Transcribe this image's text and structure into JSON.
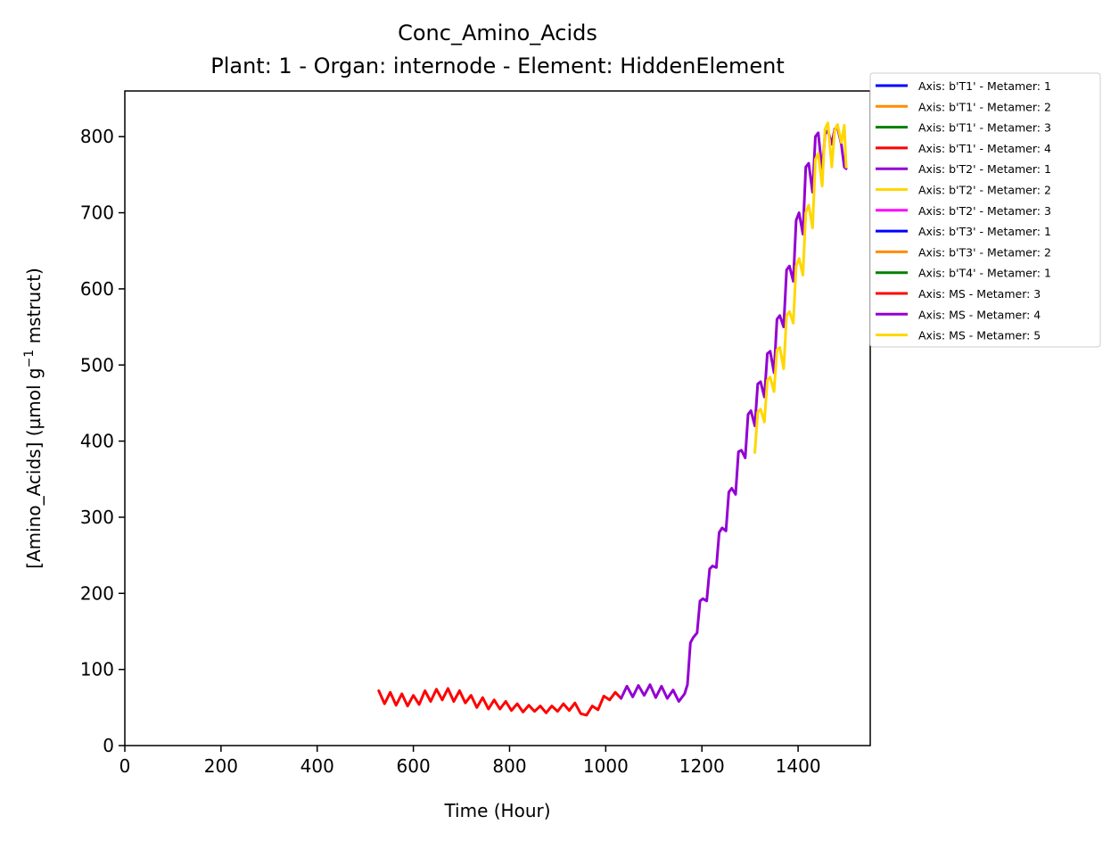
{
  "chart_data": {
    "type": "line",
    "title": "Conc_Amino_Acids",
    "subtitle": "Plant: 1 - Organ: internode - Element: HiddenElement",
    "xlabel": "Time (Hour)",
    "ylabel_prefix": "[Amino_Acids] (µmol g",
    "ylabel_sup": "−1",
    "ylabel_suffix": " mstruct)",
    "xlim": [
      0,
      1550
    ],
    "ylim": [
      0,
      860
    ],
    "xticks": [
      0,
      200,
      400,
      600,
      800,
      1000,
      1200,
      1400
    ],
    "yticks": [
      0,
      100,
      200,
      300,
      400,
      500,
      600,
      700,
      800
    ],
    "grid": false,
    "legend_position": "outside-top-right",
    "series": [
      {
        "name": "Axis: b'T1' - Metamer: 1",
        "color": "#0000ff",
        "x": [],
        "y": []
      },
      {
        "name": "Axis: b'T1' - Metamer: 2",
        "color": "#ff8c00",
        "x": [],
        "y": []
      },
      {
        "name": "Axis: b'T1' - Metamer: 3",
        "color": "#008000",
        "x": [],
        "y": []
      },
      {
        "name": "Axis: b'T1' - Metamer: 4",
        "color": "#ff0000",
        "x": [],
        "y": []
      },
      {
        "name": "Axis: b'T2' - Metamer: 1",
        "color": "#9400d3",
        "x": [],
        "y": []
      },
      {
        "name": "Axis: b'T2' - Metamer: 2",
        "color": "#ffd700",
        "x": [],
        "y": []
      },
      {
        "name": "Axis: b'T2' - Metamer: 3",
        "color": "#ff00ff",
        "x": [],
        "y": []
      },
      {
        "name": "Axis: b'T3' - Metamer: 1",
        "color": "#0000ff",
        "x": [],
        "y": []
      },
      {
        "name": "Axis: b'T3' - Metamer: 2",
        "color": "#ff8c00",
        "x": [],
        "y": []
      },
      {
        "name": "Axis: b'T4' - Metamer: 1",
        "color": "#008000",
        "x": [],
        "y": []
      },
      {
        "name": "Axis: MS - Metamer: 3",
        "color": "#ff0000",
        "x": [
          528,
          540,
          552,
          564,
          576,
          588,
          600,
          612,
          624,
          636,
          648,
          660,
          672,
          684,
          696,
          708,
          720,
          732,
          744,
          756,
          768,
          780,
          792,
          804,
          816,
          828,
          840,
          852,
          864,
          876,
          888,
          900,
          912,
          924,
          936,
          948,
          960,
          972,
          984,
          996,
          1008,
          1020,
          1032
        ],
        "y": [
          72,
          55,
          70,
          53,
          68,
          52,
          66,
          54,
          72,
          58,
          74,
          60,
          75,
          58,
          72,
          56,
          66,
          50,
          63,
          48,
          60,
          48,
          58,
          46,
          55,
          44,
          53,
          45,
          52,
          43,
          52,
          45,
          55,
          46,
          56,
          42,
          40,
          52,
          47,
          65,
          60,
          70,
          62
        ]
      },
      {
        "name": "Axis: MS - Metamer: 4",
        "color": "#9400d3",
        "x": [
          1032,
          1044,
          1056,
          1068,
          1080,
          1092,
          1104,
          1116,
          1128,
          1140,
          1152,
          1164,
          1170,
          1176,
          1182,
          1190,
          1196,
          1202,
          1210,
          1216,
          1222,
          1230,
          1236,
          1242,
          1250,
          1256,
          1262,
          1270,
          1276,
          1282,
          1290,
          1296,
          1302,
          1310,
          1316,
          1322,
          1330,
          1336,
          1342,
          1350,
          1356,
          1362,
          1370,
          1376,
          1382,
          1390,
          1396,
          1402,
          1410,
          1416,
          1422,
          1430,
          1436,
          1442,
          1450,
          1456,
          1462,
          1470,
          1476,
          1482,
          1490,
          1496,
          1500
        ],
        "y": [
          62,
          78,
          64,
          79,
          66,
          80,
          63,
          78,
          62,
          73,
          58,
          68,
          80,
          135,
          142,
          148,
          190,
          193,
          190,
          232,
          236,
          234,
          280,
          286,
          282,
          333,
          338,
          330,
          386,
          388,
          378,
          435,
          440,
          420,
          475,
          478,
          458,
          515,
          518,
          490,
          560,
          565,
          550,
          625,
          630,
          610,
          690,
          700,
          672,
          760,
          765,
          727,
          800,
          805,
          755,
          803,
          808,
          790,
          810,
          812,
          790,
          760,
          758
        ]
      },
      {
        "name": "Axis: MS - Metamer: 5",
        "color": "#ffd700",
        "x": [
          1310,
          1316,
          1322,
          1330,
          1336,
          1342,
          1350,
          1356,
          1362,
          1370,
          1376,
          1382,
          1390,
          1396,
          1402,
          1410,
          1416,
          1422,
          1430,
          1436,
          1442,
          1450,
          1456,
          1462,
          1470,
          1476,
          1482,
          1490,
          1496,
          1500
        ],
        "y": [
          385,
          438,
          442,
          425,
          480,
          484,
          465,
          520,
          523,
          495,
          565,
          570,
          555,
          630,
          640,
          618,
          700,
          710,
          680,
          770,
          778,
          735,
          810,
          818,
          760,
          808,
          816,
          792,
          815,
          760
        ]
      }
    ]
  }
}
